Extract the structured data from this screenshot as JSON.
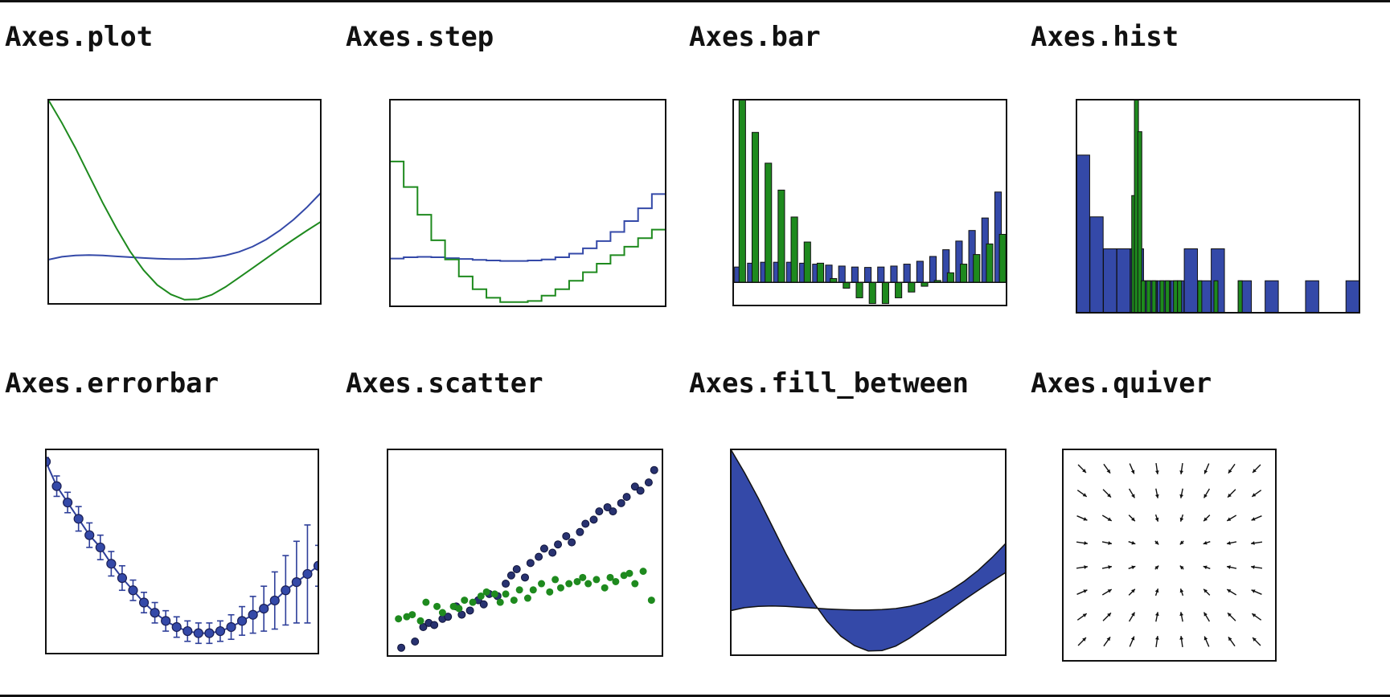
{
  "colors": {
    "blue": "#3449a8",
    "blue_line": "#2e3f9a",
    "green": "#1e8a1e",
    "dark_blue": "#283270",
    "ink": "#111111"
  },
  "panels": [
    {
      "title": "Axes.plot"
    },
    {
      "title": "Axes.step"
    },
    {
      "title": "Axes.bar"
    },
    {
      "title": "Axes.hist"
    },
    {
      "title": "Axes.errorbar"
    },
    {
      "title": "Axes.scatter"
    },
    {
      "title": "Axes.fill_between"
    },
    {
      "title": "Axes.quiver"
    }
  ],
  "chart_data": [
    {
      "type": "line",
      "title": "Axes.plot",
      "xlim": [
        0,
        10
      ],
      "ylim": [
        -0.2,
        9.5
      ],
      "x": [
        0,
        0.5,
        1,
        1.5,
        2,
        2.5,
        3,
        3.5,
        4,
        4.5,
        5,
        5.5,
        6,
        6.5,
        7,
        7.5,
        8,
        8.5,
        9,
        9.5,
        10
      ],
      "series": [
        {
          "color": "blue",
          "values": [
            1.9,
            2.04,
            2.1,
            2.12,
            2.1,
            2.06,
            2.02,
            1.98,
            1.95,
            1.93,
            1.93,
            1.95,
            2.0,
            2.1,
            2.27,
            2.52,
            2.86,
            3.29,
            3.8,
            4.4,
            5.07
          ]
        },
        {
          "color": "green",
          "values": [
            9.5,
            8.4,
            7.2,
            5.9,
            4.6,
            3.4,
            2.3,
            1.4,
            0.7,
            0.25,
            0.0,
            0.02,
            0.23,
            0.6,
            1.05,
            1.5,
            1.96,
            2.42,
            2.86,
            3.29,
            3.7
          ]
        }
      ]
    },
    {
      "type": "line",
      "title": "Axes.step",
      "xlim": [
        0,
        10
      ],
      "ylim": [
        -0.2,
        9.5
      ],
      "x": [
        0,
        0.5,
        1,
        1.5,
        2,
        2.5,
        3,
        3.5,
        4,
        4.5,
        5,
        5.5,
        6,
        6.5,
        7,
        7.5,
        8,
        8.5,
        9,
        9.5,
        10
      ],
      "series": [
        {
          "color": "blue",
          "values": [
            1.9,
            2.04,
            2.1,
            2.12,
            2.1,
            2.06,
            2.02,
            1.98,
            1.95,
            1.93,
            1.93,
            1.95,
            2.0,
            2.1,
            2.27,
            2.52,
            2.86,
            3.29,
            3.8,
            4.4,
            5.07
          ]
        },
        {
          "color": "green",
          "values": [
            7.8,
            6.6,
            5.4,
            4.1,
            2.9,
            2.0,
            1.2,
            0.6,
            0.2,
            0.0,
            0.0,
            0.05,
            0.3,
            0.6,
            1.0,
            1.4,
            1.8,
            2.2,
            2.6,
            3.0,
            3.4
          ]
        }
      ]
    },
    {
      "type": "bar",
      "title": "Axes.bar",
      "ylim": [
        -1.2,
        9.5
      ],
      "x": [
        0,
        0.5,
        1,
        1.5,
        2,
        2.5,
        3,
        3.5,
        4,
        4.5,
        5,
        5.5,
        6,
        6.5,
        7,
        7.5,
        8,
        8.5,
        9,
        9.5,
        10
      ],
      "series": [
        {
          "color": "blue",
          "values": [
            0.8,
            1.0,
            1.05,
            1.05,
            1.05,
            1.0,
            0.95,
            0.9,
            0.85,
            0.8,
            0.78,
            0.8,
            0.85,
            0.95,
            1.1,
            1.35,
            1.7,
            2.15,
            2.7,
            3.35,
            4.7
          ]
        },
        {
          "color": "green",
          "values": [
            9.5,
            7.8,
            6.2,
            4.8,
            3.4,
            2.1,
            1.0,
            0.2,
            -0.3,
            -0.8,
            -1.1,
            -1.1,
            -0.8,
            -0.5,
            -0.2,
            0.1,
            0.5,
            0.95,
            1.45,
            2.0,
            2.5
          ]
        }
      ]
    },
    {
      "type": "bar",
      "title": "Axes.hist",
      "ylim": [
        0,
        1
      ],
      "series": [
        {
          "color": "blue",
          "bars": [
            [
              0,
              0.74
            ],
            [
              1,
              0.45
            ],
            [
              2,
              0.3
            ],
            [
              3,
              0.3
            ],
            [
              4,
              0.3
            ],
            [
              5,
              0.15
            ],
            [
              6,
              0.15
            ],
            [
              7,
              0.15
            ],
            [
              8,
              0.3
            ],
            [
              9,
              0.15
            ],
            [
              10,
              0.3
            ],
            [
              12,
              0.15
            ],
            [
              14,
              0.15
            ],
            [
              17,
              0.15
            ],
            [
              20,
              0.15
            ]
          ]
        },
        {
          "color": "green",
          "bars": [
            [
              4.1,
              0.55
            ],
            [
              4.3,
              1.0
            ],
            [
              4.55,
              0.85
            ],
            [
              4.8,
              0.15
            ],
            [
              5.2,
              0.15
            ],
            [
              5.6,
              0.15
            ],
            [
              6.2,
              0.15
            ],
            [
              6.6,
              0.15
            ],
            [
              7.2,
              0.15
            ],
            [
              7.5,
              0.15
            ],
            [
              9.0,
              0.15
            ],
            [
              10.2,
              0.15
            ],
            [
              12.0,
              0.15
            ]
          ]
        }
      ]
    },
    {
      "type": "line",
      "title": "Axes.errorbar",
      "xlim": [
        0,
        10
      ],
      "ylim": [
        0,
        1
      ],
      "x": [
        0,
        0.4,
        0.8,
        1.2,
        1.6,
        2.0,
        2.4,
        2.8,
        3.2,
        3.6,
        4.0,
        4.4,
        4.8,
        5.2,
        5.6,
        6.0,
        6.4,
        6.8,
        7.2,
        7.6,
        8.0,
        8.4,
        8.8,
        9.2,
        9.6,
        10.0
      ],
      "y": [
        0.94,
        0.82,
        0.74,
        0.66,
        0.58,
        0.52,
        0.44,
        0.37,
        0.31,
        0.25,
        0.2,
        0.16,
        0.13,
        0.11,
        0.1,
        0.1,
        0.11,
        0.13,
        0.16,
        0.19,
        0.22,
        0.26,
        0.31,
        0.35,
        0.39,
        0.43
      ],
      "yerr": [
        0.02,
        0.05,
        0.05,
        0.06,
        0.06,
        0.06,
        0.06,
        0.06,
        0.05,
        0.05,
        0.05,
        0.05,
        0.05,
        0.05,
        0.05,
        0.05,
        0.05,
        0.06,
        0.07,
        0.09,
        0.11,
        0.14,
        0.17,
        0.2,
        0.24,
        0.1
      ]
    },
    {
      "type": "scatter",
      "title": "Axes.scatter",
      "xlim": [
        0,
        1
      ],
      "ylim": [
        0,
        1
      ],
      "series": [
        {
          "color": "dark_blue",
          "x": [
            0.05,
            0.1,
            0.13,
            0.15,
            0.17,
            0.2,
            0.22,
            0.25,
            0.27,
            0.3,
            0.33,
            0.35,
            0.37,
            0.4,
            0.43,
            0.45,
            0.47,
            0.5,
            0.52,
            0.55,
            0.57,
            0.6,
            0.62,
            0.65,
            0.67,
            0.7,
            0.72,
            0.75,
            0.77,
            0.8,
            0.82,
            0.85,
            0.87,
            0.9,
            0.92,
            0.95,
            0.97
          ],
          "y": [
            0.04,
            0.07,
            0.14,
            0.16,
            0.15,
            0.18,
            0.19,
            0.24,
            0.2,
            0.22,
            0.27,
            0.25,
            0.3,
            0.29,
            0.35,
            0.39,
            0.42,
            0.38,
            0.45,
            0.48,
            0.52,
            0.5,
            0.54,
            0.58,
            0.55,
            0.6,
            0.64,
            0.66,
            0.7,
            0.72,
            0.7,
            0.74,
            0.77,
            0.82,
            0.8,
            0.84,
            0.9
          ]
        },
        {
          "color": "green",
          "x": [
            0.04,
            0.07,
            0.09,
            0.12,
            0.14,
            0.18,
            0.2,
            0.24,
            0.26,
            0.28,
            0.31,
            0.34,
            0.36,
            0.39,
            0.41,
            0.43,
            0.46,
            0.48,
            0.51,
            0.53,
            0.56,
            0.59,
            0.61,
            0.63,
            0.66,
            0.69,
            0.71,
            0.73,
            0.76,
            0.79,
            0.81,
            0.83,
            0.86,
            0.88,
            0.9,
            0.93,
            0.96
          ],
          "y": [
            0.18,
            0.19,
            0.2,
            0.17,
            0.26,
            0.24,
            0.21,
            0.24,
            0.23,
            0.27,
            0.26,
            0.29,
            0.31,
            0.3,
            0.26,
            0.3,
            0.27,
            0.32,
            0.28,
            0.32,
            0.35,
            0.31,
            0.37,
            0.33,
            0.35,
            0.36,
            0.38,
            0.35,
            0.37,
            0.33,
            0.38,
            0.36,
            0.39,
            0.4,
            0.35,
            0.41,
            0.27
          ]
        }
      ]
    },
    {
      "type": "area",
      "title": "Axes.fill_between",
      "xlim": [
        0,
        10
      ],
      "ylim": [
        -0.2,
        9.5
      ],
      "x": [
        0,
        0.5,
        1,
        1.5,
        2,
        2.5,
        3,
        3.5,
        4,
        4.5,
        5,
        5.5,
        6,
        6.5,
        7,
        7.5,
        8,
        8.5,
        9,
        9.5,
        10
      ],
      "series": [
        {
          "color": "blue",
          "name": "",
          "values": [
            9.5,
            8.4,
            7.2,
            5.9,
            4.6,
            3.4,
            2.3,
            1.4,
            0.7,
            0.25,
            0.0,
            0.02,
            0.23,
            0.6,
            1.05,
            1.5,
            1.96,
            2.42,
            2.86,
            3.29,
            3.7
          ]
        },
        {
          "color": "blue",
          "name": "",
          "values": [
            1.9,
            2.04,
            2.1,
            2.12,
            2.1,
            2.06,
            2.02,
            1.98,
            1.95,
            1.93,
            1.93,
            1.95,
            2.0,
            2.1,
            2.27,
            2.52,
            2.86,
            3.29,
            3.8,
            4.4,
            5.07
          ]
        }
      ]
    },
    {
      "type": "quiver",
      "title": "Axes.quiver",
      "grid": [
        8,
        8
      ],
      "field": "radial-inward"
    }
  ]
}
